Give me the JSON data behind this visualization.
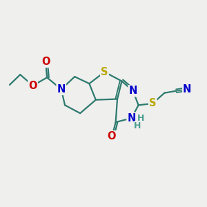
{
  "background_color": "#efefed",
  "bond_color": "#2d7a6e",
  "bond_width": 1.6,
  "atom_colors": {
    "S": "#b8a800",
    "N": "#0000cc",
    "O": "#cc0000",
    "H": "#4a9e90"
  },
  "font_size": 10.5,
  "font_size_h": 9
}
